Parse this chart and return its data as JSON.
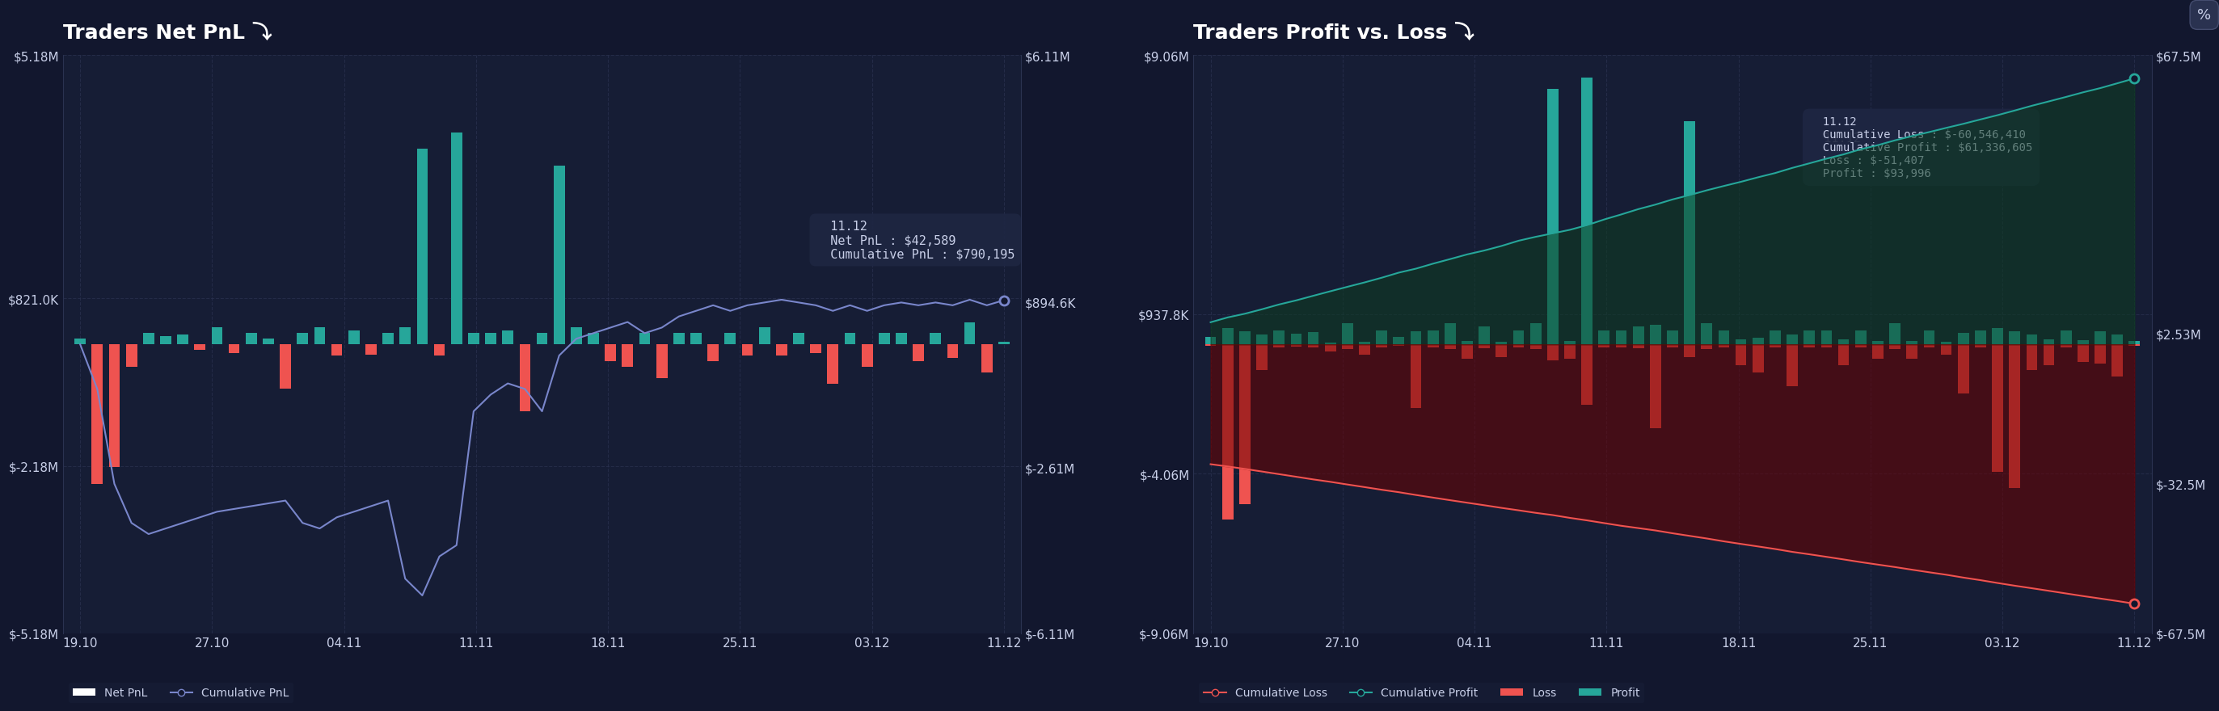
{
  "bg_color": "#12172e",
  "panel_color": "#161d35",
  "grid_color": "#2a3250",
  "text_color": "#c8cfe8",
  "title_color": "#ffffff",
  "tooltip_bg": "#1e2642",
  "chart1": {
    "title": "Traders Net PnL ⤵",
    "ylim_left": [
      -5180000,
      5180000
    ],
    "ylim_right": [
      -6110000,
      6110000
    ],
    "yticks_left": [
      -5180000,
      -2180000,
      821000,
      5180000
    ],
    "yticks_left_labels": [
      "$-5.18M",
      "$-2.18M",
      "$821.0K",
      "$5.18M"
    ],
    "yticks_right": [
      -6110000,
      -2610000,
      894600,
      6110000
    ],
    "yticks_right_labels": [
      "$-6.11M",
      "$-2.61M",
      "$894.6K",
      "$6.11M"
    ],
    "xticks": [
      "19.10",
      "27.10",
      "04.11",
      "11.11",
      "18.11",
      "25.11",
      "03.12",
      "11.12"
    ],
    "bar_color_pos": "#26a69a",
    "bar_color_neg": "#ef5350",
    "line_color": "#7986cb",
    "tooltip_date": "11.12",
    "tooltip_net_pnl": "$42,589",
    "tooltip_cum_pnl": "$790,195"
  },
  "chart2": {
    "title": "Traders Profit vs. Loss ⤵",
    "ylim_left": [
      -9060000,
      9060000
    ],
    "ylim_right": [
      -67500000,
      67500000
    ],
    "yticks_left": [
      -9060000,
      -4060000,
      937800,
      9060000
    ],
    "yticks_left_labels": [
      "$-9.06M",
      "$-4.06M",
      "$937.8K",
      "$9.06M"
    ],
    "yticks_right": [
      -67500000,
      -32500000,
      2530000,
      67500000
    ],
    "yticks_right_labels": [
      "$-67.5M",
      "$-32.5M",
      "$2.53M",
      "$67.5M"
    ],
    "xticks": [
      "19.10",
      "27.10",
      "04.11",
      "11.11",
      "18.11",
      "25.11",
      "03.12",
      "11.12"
    ],
    "bar_color_pos": "#26a69a",
    "bar_color_neg": "#ef5350",
    "cum_loss_color": "#ef5350",
    "cum_profit_color": "#26a69a",
    "area_loss_color": "#6b0000",
    "area_profit_color": "#0d3d20",
    "tooltip_date": "11.12",
    "tooltip_cum_loss": "$-60,546,410",
    "tooltip_cum_profit": "$61,336,605",
    "tooltip_loss": "$-51,407",
    "tooltip_profit": "$93,996"
  }
}
